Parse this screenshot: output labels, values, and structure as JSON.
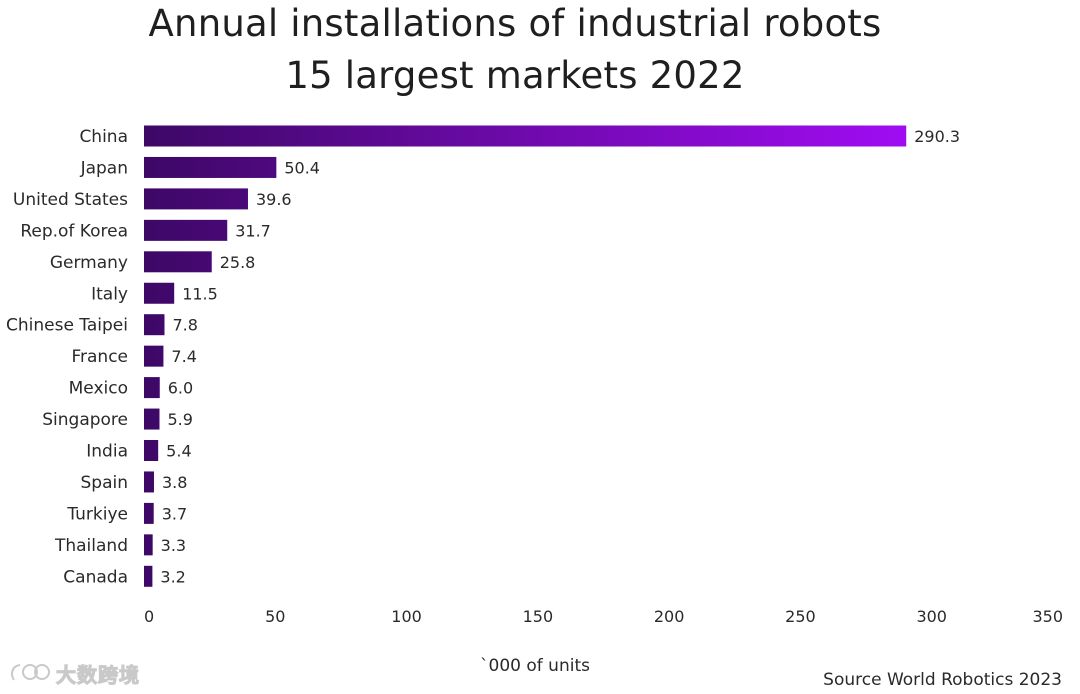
{
  "chart_data": {
    "type": "bar",
    "orientation": "horizontal",
    "title": "Annual installations of industrial robots",
    "subtitle": "15 largest markets 2022",
    "xlabel": "`000 of units",
    "ylabel": "",
    "xlim": [
      0,
      350
    ],
    "x_ticks": [
      "0",
      "50",
      "100",
      "150",
      "200",
      "250",
      "300",
      "350"
    ],
    "categories": [
      "China",
      "Japan",
      "United States",
      "Rep.of Korea",
      "Germany",
      "Italy",
      "Chinese Taipei",
      "France",
      "Mexico",
      "Singapore",
      "India",
      "Spain",
      "Turkiye",
      "Thailand",
      "Canada"
    ],
    "values": [
      290.3,
      50.4,
      39.6,
      31.7,
      25.8,
      11.5,
      7.8,
      7.4,
      6.0,
      5.9,
      5.4,
      3.8,
      3.7,
      3.3,
      3.2
    ],
    "value_labels": [
      "290.3",
      "50.4",
      "39.6",
      "31.7",
      "25.8",
      "11.5",
      "7.8",
      "7.4",
      "6.0",
      "5.9",
      "5.4",
      "3.8",
      "3.7",
      "3.3",
      "3.2"
    ],
    "grid": false,
    "legend": "none",
    "colors": {
      "bar_start": "#3d0866",
      "bar_end": "#a00cf2"
    }
  },
  "source": "Source World Robotics 2023",
  "watermark": {
    "text": "大数跨境",
    "icon": "watermark-logo-icon"
  }
}
